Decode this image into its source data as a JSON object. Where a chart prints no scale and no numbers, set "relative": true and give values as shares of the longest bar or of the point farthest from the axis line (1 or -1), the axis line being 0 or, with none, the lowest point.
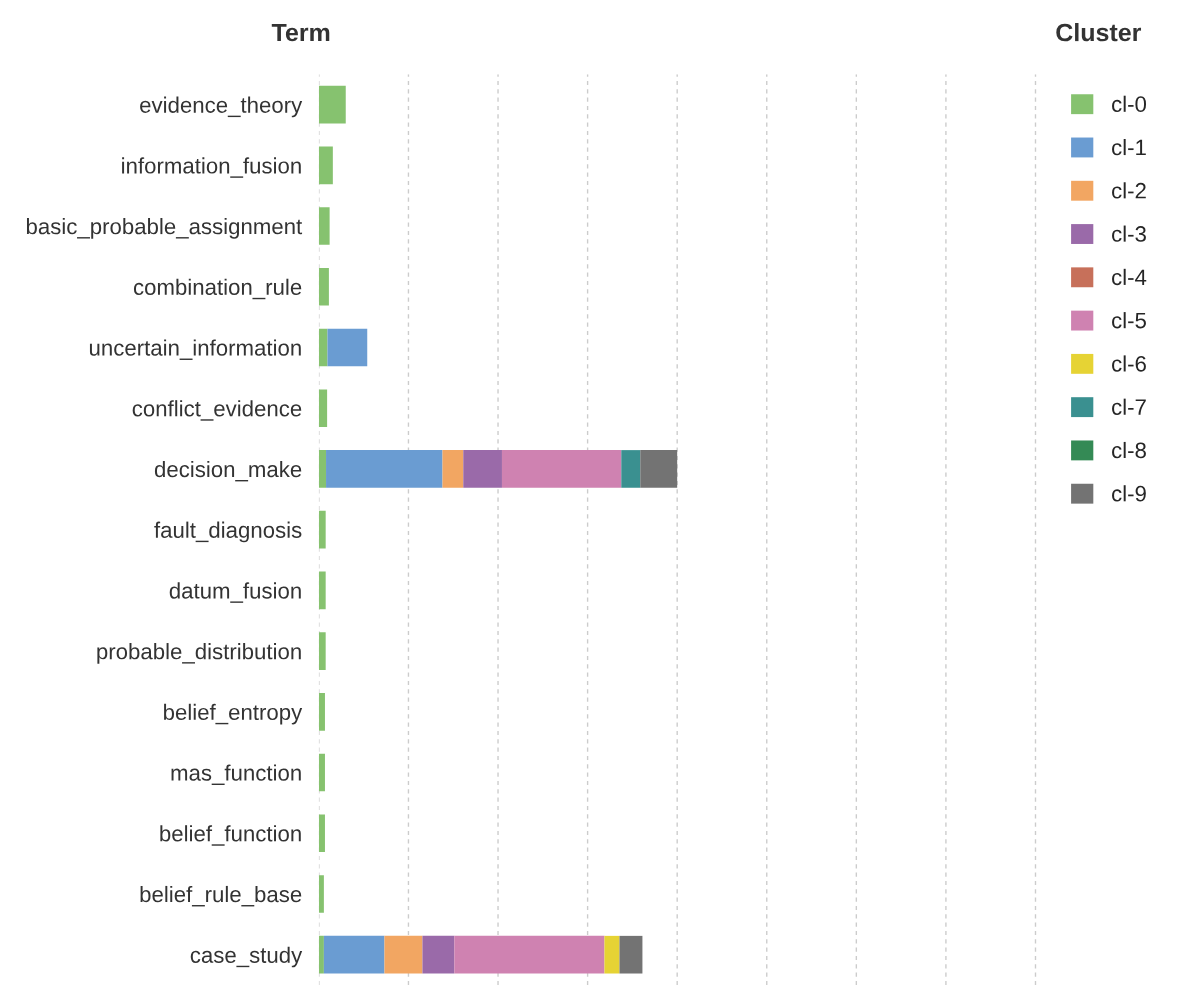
{
  "chart_data": {
    "type": "bar",
    "orientation": "horizontal",
    "stacked": true,
    "relative": true,
    "ylabel": "Term",
    "legend_title": "Cluster",
    "legend": "top right",
    "grid": "x",
    "tick_labels": "y",
    "categories": [
      "evidence_theory",
      "information_fusion",
      "basic_probable_assignment",
      "combination_rule",
      "uncertain_information",
      "conflict_evidence",
      "decision_make",
      "fault_diagnosis",
      "datum_fusion",
      "probable_distribution",
      "belief_entropy",
      "mas_function",
      "belief_function",
      "belief_rule_base",
      "case_study"
    ],
    "series": [
      {
        "name": "cl-0",
        "color": "#86c26f",
        "values": [
          0.075,
          0.039,
          0.03,
          0.028,
          0.024,
          0.023,
          0.02,
          0.019,
          0.019,
          0.019,
          0.017,
          0.017,
          0.017,
          0.014,
          0.014
        ]
      },
      {
        "name": "cl-1",
        "color": "#6a9cd2",
        "values": [
          null,
          null,
          null,
          null,
          0.111,
          null,
          0.325,
          null,
          null,
          null,
          null,
          null,
          null,
          null,
          0.169
        ]
      },
      {
        "name": "cl-2",
        "color": "#f2a662",
        "values": [
          null,
          null,
          null,
          null,
          null,
          null,
          0.058,
          null,
          null,
          null,
          null,
          null,
          null,
          null,
          0.106
        ]
      },
      {
        "name": "cl-3",
        "color": "#9a6aa9",
        "values": [
          null,
          null,
          null,
          null,
          null,
          null,
          0.108,
          null,
          null,
          null,
          null,
          null,
          null,
          null,
          0.089
        ]
      },
      {
        "name": "cl-4",
        "color": "#c7705a",
        "values": [
          null,
          null,
          null,
          null,
          null,
          null,
          null,
          null,
          null,
          null,
          null,
          null,
          null,
          null,
          null
        ]
      },
      {
        "name": "cl-5",
        "color": "#cf82b1",
        "values": [
          null,
          null,
          null,
          null,
          null,
          null,
          0.333,
          null,
          null,
          null,
          null,
          null,
          null,
          null,
          0.419
        ]
      },
      {
        "name": "cl-6",
        "color": "#e6d334",
        "values": [
          null,
          null,
          null,
          null,
          null,
          null,
          null,
          null,
          null,
          null,
          null,
          null,
          null,
          null,
          0.042
        ]
      },
      {
        "name": "cl-7",
        "color": "#3a9090",
        "values": [
          null,
          null,
          null,
          null,
          null,
          null,
          0.053,
          null,
          null,
          null,
          null,
          null,
          null,
          null,
          null
        ]
      },
      {
        "name": "cl-8",
        "color": "#348a55",
        "values": [
          null,
          null,
          null,
          null,
          null,
          null,
          null,
          null,
          null,
          null,
          null,
          null,
          null,
          null,
          null
        ]
      },
      {
        "name": "cl-9",
        "color": "#737373",
        "values": [
          null,
          null,
          null,
          null,
          null,
          null,
          0.103,
          null,
          null,
          null,
          null,
          null,
          null,
          null,
          0.064
        ]
      }
    ]
  }
}
